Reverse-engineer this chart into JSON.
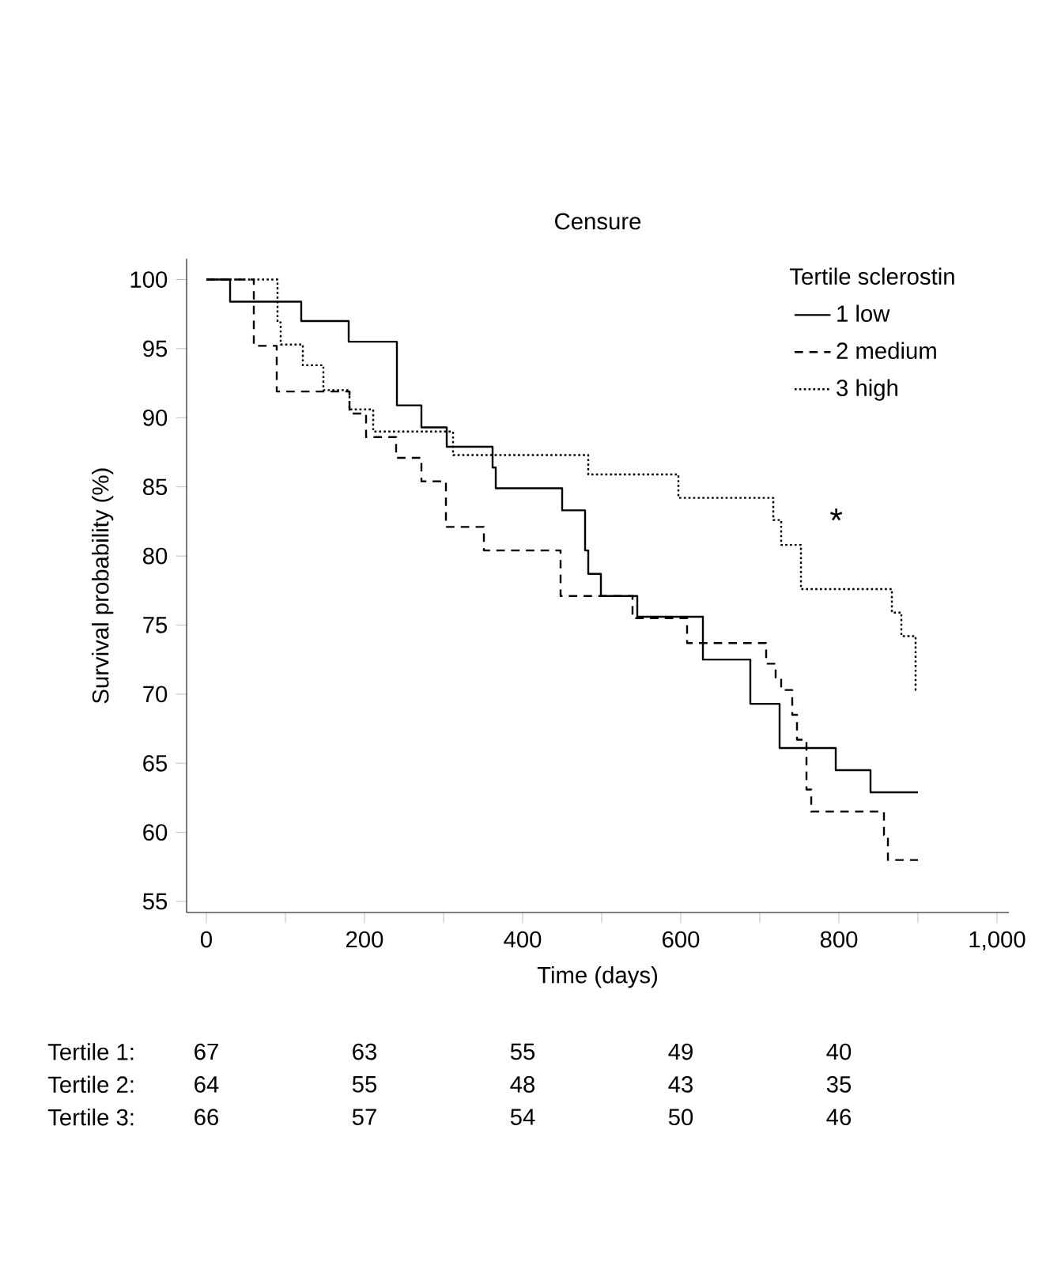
{
  "chart_data": {
    "type": "step",
    "title": "Censure",
    "xlabel": "Time (days)",
    "ylabel": "Survival probability (%)",
    "legend_title": "Tertile sclerostin",
    "legend": "top right",
    "xlim": [
      -25,
      1015
    ],
    "ylim": [
      54.2,
      101.5
    ],
    "xticks": [
      0,
      {
        "value": 100,
        "label": null
      },
      200,
      {
        "value": 300,
        "label": null
      },
      400,
      {
        "value": 500,
        "label": null
      },
      600,
      {
        "value": 700,
        "label": null
      },
      800,
      {
        "value": 900,
        "label": null
      },
      {
        "value": 1000,
        "label": "1,000"
      }
    ],
    "yticks": [
      55,
      60,
      65,
      70,
      75,
      80,
      85,
      90,
      95,
      100
    ],
    "series": [
      {
        "name": "1 low",
        "color": "#000000",
        "line_style": "solid",
        "x": [
          0,
          30,
          120,
          180,
          241,
          272,
          304,
          362,
          366,
          450,
          479,
          483,
          499,
          545,
          628,
          688,
          725,
          796,
          840,
          900
        ],
        "values": [
          100,
          98.4,
          97,
          95.5,
          90.9,
          89.3,
          87.9,
          86.4,
          84.9,
          83.3,
          80.4,
          78.7,
          77.1,
          75.6,
          72.5,
          69.3,
          66.1,
          64.5,
          62.9,
          62.9
        ]
      },
      {
        "name": "2 medium",
        "color": "#000000",
        "line_style": "dashed",
        "x": [
          0,
          60,
          89,
          181,
          202,
          240,
          272,
          303,
          351,
          448,
          539,
          608,
          708,
          720,
          727,
          741,
          747,
          759,
          765,
          857,
          862,
          900
        ],
        "values": [
          100,
          95.2,
          91.9,
          90.3,
          88.6,
          87.1,
          85.4,
          82.1,
          80.4,
          77.1,
          75.5,
          73.7,
          72.2,
          71.2,
          70.3,
          68.5,
          66.7,
          63.1,
          61.5,
          59.8,
          58.0,
          58.0
        ]
      },
      {
        "name": "3 high",
        "color": "#000000",
        "line_style": "dotted",
        "x": [
          0,
          90,
          94,
          122,
          148,
          181,
          211,
          312,
          483,
          597,
          717,
          727,
          752,
          867,
          879,
          897,
          900
        ],
        "values": [
          100,
          96.9,
          95.3,
          93.8,
          92.0,
          90.6,
          89.0,
          87.3,
          85.9,
          84.2,
          82.6,
          80.8,
          77.6,
          75.9,
          74.2,
          70.3,
          70.3
        ]
      }
    ],
    "annotations": [
      "*",
      "Tertile 1:",
      "67",
      "63",
      "55",
      "49",
      "40",
      "Tertile 2:",
      "64",
      "55",
      "48",
      "43",
      "35",
      "Tertile 3:",
      "66",
      "57",
      "54",
      "50",
      "46"
    ]
  }
}
